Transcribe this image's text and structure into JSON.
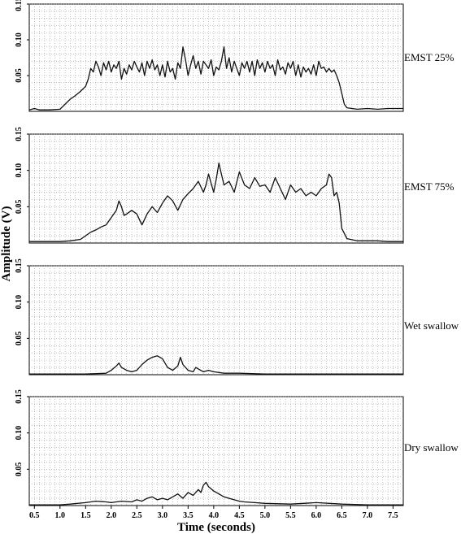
{
  "chart_data": {
    "type": "line",
    "xlabel": "Time (seconds)",
    "ylabel": "Amplitude (V)",
    "xlim": [
      0.4,
      7.7
    ],
    "ylim": [
      0,
      0.15
    ],
    "x_ticks": [
      "0.5",
      "1.0",
      "1.5",
      "2.0",
      "2.5",
      "3.0",
      "3.5",
      "4.0",
      "4.5",
      "5.0",
      "5.5",
      "6.0",
      "6.5",
      "7.0",
      "7.5"
    ],
    "y_ticks": [
      "0.05",
      "0.10",
      "0.15"
    ],
    "grid": true,
    "panels": [
      {
        "label": "EMST 25%",
        "x": [
          0.4,
          0.5,
          0.6,
          0.8,
          1.0,
          1.1,
          1.2,
          1.3,
          1.4,
          1.5,
          1.55,
          1.6,
          1.65,
          1.7,
          1.75,
          1.8,
          1.85,
          1.9,
          1.95,
          2.0,
          2.05,
          2.1,
          2.15,
          2.2,
          2.25,
          2.3,
          2.35,
          2.4,
          2.45,
          2.5,
          2.55,
          2.6,
          2.65,
          2.7,
          2.75,
          2.8,
          2.85,
          2.9,
          2.95,
          3.0,
          3.05,
          3.1,
          3.15,
          3.2,
          3.25,
          3.3,
          3.35,
          3.4,
          3.45,
          3.5,
          3.55,
          3.6,
          3.65,
          3.7,
          3.75,
          3.8,
          3.85,
          3.9,
          3.95,
          4.0,
          4.05,
          4.1,
          4.15,
          4.2,
          4.25,
          4.3,
          4.35,
          4.4,
          4.45,
          4.5,
          4.55,
          4.6,
          4.65,
          4.7,
          4.75,
          4.8,
          4.85,
          4.9,
          4.95,
          5.0,
          5.05,
          5.1,
          5.15,
          5.2,
          5.25,
          5.3,
          5.35,
          5.4,
          5.45,
          5.5,
          5.55,
          5.6,
          5.65,
          5.7,
          5.75,
          5.8,
          5.85,
          5.9,
          5.95,
          6.0,
          6.05,
          6.1,
          6.15,
          6.2,
          6.25,
          6.3,
          6.35,
          6.4,
          6.45,
          6.5,
          6.55,
          6.6,
          6.8,
          7.0,
          7.2,
          7.4,
          7.7
        ],
        "y": [
          0.002,
          0.004,
          0.002,
          0.002,
          0.003,
          0.01,
          0.017,
          0.022,
          0.028,
          0.035,
          0.045,
          0.06,
          0.055,
          0.07,
          0.062,
          0.05,
          0.068,
          0.058,
          0.07,
          0.055,
          0.065,
          0.06,
          0.07,
          0.045,
          0.06,
          0.052,
          0.065,
          0.058,
          0.07,
          0.062,
          0.055,
          0.068,
          0.05,
          0.07,
          0.06,
          0.072,
          0.058,
          0.065,
          0.05,
          0.065,
          0.048,
          0.07,
          0.055,
          0.06,
          0.045,
          0.068,
          0.06,
          0.09,
          0.072,
          0.05,
          0.065,
          0.078,
          0.06,
          0.07,
          0.052,
          0.07,
          0.065,
          0.06,
          0.072,
          0.05,
          0.062,
          0.058,
          0.07,
          0.09,
          0.06,
          0.075,
          0.055,
          0.07,
          0.06,
          0.05,
          0.068,
          0.06,
          0.07,
          0.055,
          0.07,
          0.05,
          0.072,
          0.06,
          0.068,
          0.055,
          0.07,
          0.06,
          0.065,
          0.05,
          0.072,
          0.058,
          0.062,
          0.052,
          0.068,
          0.06,
          0.07,
          0.05,
          0.065,
          0.048,
          0.062,
          0.055,
          0.06,
          0.052,
          0.065,
          0.05,
          0.07,
          0.06,
          0.062,
          0.055,
          0.06,
          0.055,
          0.058,
          0.05,
          0.04,
          0.025,
          0.01,
          0.005,
          0.003,
          0.004,
          0.003,
          0.004,
          0.004
        ]
      },
      {
        "label": "EMST 75%",
        "x": [
          0.4,
          0.6,
          0.8,
          1.0,
          1.2,
          1.4,
          1.5,
          1.6,
          1.7,
          1.8,
          1.9,
          2.0,
          2.1,
          2.15,
          2.2,
          2.25,
          2.3,
          2.4,
          2.5,
          2.6,
          2.7,
          2.8,
          2.9,
          3.0,
          3.1,
          3.2,
          3.3,
          3.4,
          3.5,
          3.6,
          3.7,
          3.8,
          3.85,
          3.9,
          3.95,
          4.0,
          4.05,
          4.1,
          4.15,
          4.2,
          4.3,
          4.4,
          4.5,
          4.6,
          4.7,
          4.8,
          4.9,
          5.0,
          5.1,
          5.2,
          5.3,
          5.4,
          5.5,
          5.6,
          5.7,
          5.8,
          5.9,
          6.0,
          6.1,
          6.2,
          6.25,
          6.3,
          6.35,
          6.4,
          6.45,
          6.5,
          6.6,
          6.8,
          7.0,
          7.2,
          7.4,
          7.7
        ],
        "y": [
          0.002,
          0.002,
          0.002,
          0.002,
          0.003,
          0.005,
          0.01,
          0.015,
          0.018,
          0.022,
          0.025,
          0.035,
          0.045,
          0.058,
          0.05,
          0.038,
          0.04,
          0.045,
          0.04,
          0.025,
          0.04,
          0.05,
          0.042,
          0.055,
          0.065,
          0.058,
          0.045,
          0.06,
          0.068,
          0.075,
          0.085,
          0.07,
          0.08,
          0.095,
          0.082,
          0.07,
          0.088,
          0.11,
          0.095,
          0.08,
          0.085,
          0.07,
          0.098,
          0.08,
          0.075,
          0.09,
          0.078,
          0.08,
          0.07,
          0.09,
          0.075,
          0.06,
          0.08,
          0.07,
          0.075,
          0.065,
          0.07,
          0.065,
          0.075,
          0.08,
          0.095,
          0.09,
          0.065,
          0.07,
          0.055,
          0.02,
          0.006,
          0.003,
          0.003,
          0.003,
          0.002,
          0.002
        ]
      },
      {
        "label": "Wet swallow",
        "x": [
          0.4,
          1.0,
          1.5,
          1.9,
          2.0,
          2.1,
          2.15,
          2.2,
          2.3,
          2.4,
          2.5,
          2.6,
          2.7,
          2.8,
          2.9,
          3.0,
          3.1,
          3.2,
          3.3,
          3.35,
          3.4,
          3.5,
          3.6,
          3.65,
          3.7,
          3.8,
          3.9,
          4.0,
          4.2,
          4.5,
          5.0,
          6.0,
          7.0,
          7.7
        ],
        "y": [
          0.001,
          0.001,
          0.001,
          0.002,
          0.006,
          0.012,
          0.016,
          0.01,
          0.006,
          0.004,
          0.006,
          0.014,
          0.02,
          0.024,
          0.026,
          0.022,
          0.01,
          0.006,
          0.012,
          0.024,
          0.014,
          0.006,
          0.004,
          0.01,
          0.008,
          0.004,
          0.006,
          0.004,
          0.002,
          0.002,
          0.001,
          0.001,
          0.001,
          0.001
        ]
      },
      {
        "label": "Dry swallow",
        "x": [
          0.4,
          0.8,
          1.0,
          1.2,
          1.5,
          1.7,
          1.9,
          2.0,
          2.2,
          2.4,
          2.5,
          2.6,
          2.7,
          2.8,
          2.9,
          3.0,
          3.1,
          3.2,
          3.3,
          3.4,
          3.5,
          3.6,
          3.7,
          3.75,
          3.8,
          3.85,
          3.9,
          4.0,
          4.1,
          4.2,
          4.3,
          4.4,
          4.5,
          4.6,
          4.8,
          5.0,
          5.5,
          6.0,
          6.5,
          7.0,
          7.7
        ],
        "y": [
          0.001,
          0.001,
          0.001,
          0.002,
          0.004,
          0.006,
          0.005,
          0.004,
          0.006,
          0.005,
          0.008,
          0.006,
          0.01,
          0.012,
          0.008,
          0.01,
          0.008,
          0.012,
          0.016,
          0.01,
          0.018,
          0.014,
          0.022,
          0.018,
          0.028,
          0.032,
          0.026,
          0.02,
          0.016,
          0.012,
          0.01,
          0.008,
          0.006,
          0.005,
          0.004,
          0.003,
          0.002,
          0.004,
          0.002,
          0.001,
          0.001
        ]
      }
    ]
  }
}
